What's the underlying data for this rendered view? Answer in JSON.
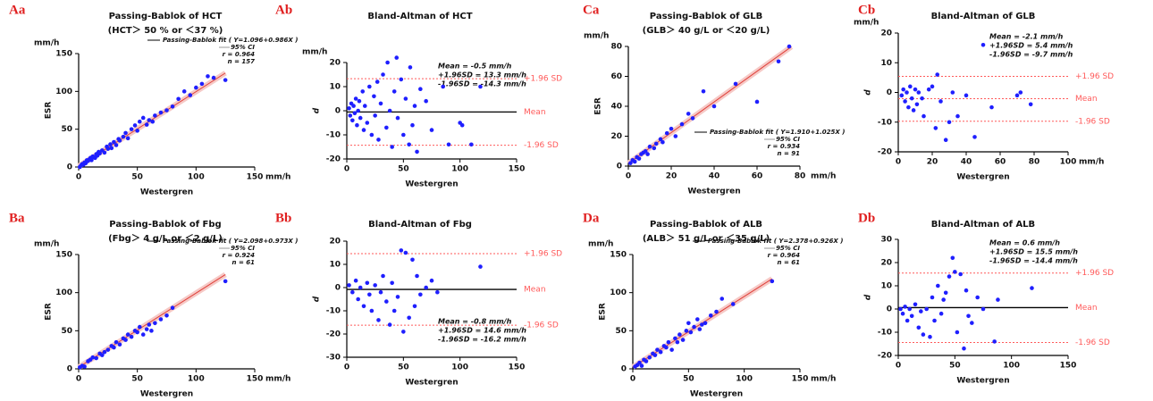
{
  "chart_data": [
    {
      "type": "passing-bablok",
      "panel": "Aa",
      "title": "Passing-Bablok of HCT",
      "subtitle": "(HCT＞ 50 % or ＜37 %)",
      "x_label": "Westergren",
      "y_label": "ESR",
      "x_unit": "mm/h",
      "y_unit": "mm/h",
      "xlim": [
        0,
        150
      ],
      "ylim": [
        0,
        150
      ],
      "xticks": [
        0,
        50,
        100,
        150
      ],
      "yticks": [
        0,
        50,
        100,
        150
      ],
      "legend_position": "upper right",
      "series": [
        {
          "color": "#1f1fff",
          "x": [
            1,
            2,
            3,
            4,
            5,
            6,
            7,
            8,
            9,
            10,
            11,
            12,
            13,
            14,
            15,
            16,
            17,
            18,
            20,
            22,
            24,
            25,
            27,
            28,
            30,
            32,
            34,
            35,
            38,
            40,
            42,
            45,
            48,
            50,
            52,
            55,
            58,
            60,
            63,
            65,
            70,
            75,
            80,
            85,
            90,
            95,
            100,
            105,
            110,
            115,
            125
          ],
          "values": [
            0,
            2,
            4,
            3,
            6,
            5,
            9,
            8,
            10,
            12,
            9,
            14,
            13,
            12,
            17,
            15,
            20,
            18,
            22,
            19,
            27,
            24,
            30,
            25,
            33,
            29,
            37,
            35,
            40,
            45,
            38,
            50,
            55,
            48,
            60,
            65,
            56,
            62,
            60,
            68,
            72,
            75,
            80,
            90,
            100,
            95,
            105,
            110,
            120,
            118,
            115
          ]
        },
        {
          "name": "Passing-Bablok fit ( Y=1.096+0.986X )",
          "color": "#e0403a",
          "x": [
            0,
            125
          ],
          "values": [
            1.1,
            124.3
          ]
        }
      ],
      "ci_label": "95% CI",
      "ci_color": "#f6c9c6",
      "annotations": [
        "r = 0.964",
        "n = 157"
      ]
    },
    {
      "type": "bland-altman",
      "panel": "Ab",
      "title": "Bland-Altman of HCT",
      "x_label": "Westergren",
      "y_label": "d",
      "y_unit": "mm/h",
      "xlim": [
        0,
        150
      ],
      "ylim": [
        -20,
        20
      ],
      "xticks": [
        0,
        50,
        100,
        150
      ],
      "yticks": [
        -20,
        -10,
        0,
        10,
        20
      ],
      "legend_position": "upper right",
      "series": [
        {
          "color": "#1f1fff",
          "x": [
            2,
            3,
            4,
            5,
            6,
            7,
            8,
            9,
            10,
            11,
            12,
            14,
            15,
            16,
            18,
            20,
            22,
            24,
            25,
            27,
            28,
            30,
            32,
            35,
            36,
            38,
            40,
            42,
            44,
            45,
            48,
            50,
            52,
            55,
            56,
            58,
            60,
            62,
            65,
            70,
            75,
            85,
            90,
            100,
            102,
            110,
            118
          ],
          "values": [
            1,
            -2,
            3,
            -4,
            2,
            -1,
            5,
            -6,
            0,
            4,
            -3,
            8,
            -8,
            2,
            -5,
            10,
            -10,
            6,
            -2,
            12,
            -12,
            3,
            15,
            -7,
            20,
            0,
            -15,
            8,
            22,
            -3,
            13,
            -10,
            5,
            -14,
            18,
            -6,
            2,
            -17,
            9,
            4,
            -8,
            10,
            -14,
            -5,
            -6,
            -14,
            10
          ]
        }
      ],
      "reference_lines": [
        {
          "label": "+1.96 SD",
          "value": 13.3,
          "color": "#ff5a5a"
        },
        {
          "label": "Mean",
          "value": -0.5,
          "color": "#000000"
        },
        {
          "label": "-1.96 SD",
          "value": -14.3,
          "color": "#ff5a5a"
        }
      ],
      "annotations": [
        "Mean = -0.5 mm/h",
        "+1.96SD = 13.3 mm/h",
        "-1.96SD = -14.3 mm/h"
      ]
    },
    {
      "type": "passing-bablok",
      "panel": "Ca",
      "title": "Passing-Bablok of GLB",
      "subtitle": "(GLB＞ 40 g/L or ＜20 g/L)",
      "x_label": "Westergren",
      "y_label": "ESR",
      "x_unit": "mm/h",
      "y_unit": "mm/h",
      "xlim": [
        0,
        80
      ],
      "ylim": [
        0,
        80
      ],
      "xticks": [
        0,
        20,
        40,
        60,
        80
      ],
      "yticks": [
        0,
        20,
        40,
        60,
        80
      ],
      "legend_position": "lower right",
      "series": [
        {
          "color": "#1f1fff",
          "x": [
            1,
            2,
            3,
            4,
            5,
            6,
            7,
            8,
            9,
            10,
            12,
            13,
            15,
            16,
            18,
            20,
            22,
            25,
            28,
            30,
            35,
            40,
            50,
            60,
            70,
            75
          ],
          "values": [
            2,
            4,
            3,
            6,
            5,
            8,
            9,
            10,
            8,
            13,
            12,
            15,
            18,
            16,
            22,
            25,
            20,
            28,
            35,
            32,
            50,
            40,
            55,
            43,
            70,
            80
          ]
        },
        {
          "name": "Passing-Bablok fit ( Y=1.910+1.025X )",
          "color": "#e0403a",
          "x": [
            0,
            76
          ],
          "values": [
            1.9,
            79.8
          ]
        }
      ],
      "ci_label": "95% CI",
      "ci_color": "#f6c9c6",
      "annotations": [
        "r = 0.934",
        "n = 91"
      ]
    },
    {
      "type": "bland-altman",
      "panel": "Cb",
      "title": "Bland-Altman of GLB",
      "x_label": "Westergren",
      "y_label": "d",
      "x_unit": "mm/h",
      "y_unit": "mm/h",
      "xlim": [
        0,
        100
      ],
      "ylim": [
        -20,
        20
      ],
      "xticks": [
        0,
        20,
        40,
        60,
        80,
        100
      ],
      "yticks": [
        -20,
        -10,
        0,
        10,
        20
      ],
      "legend_position": "upper right",
      "series": [
        {
          "color": "#1f1fff",
          "x": [
            2,
            3,
            4,
            5,
            6,
            7,
            8,
            9,
            10,
            11,
            12,
            14,
            15,
            18,
            20,
            22,
            23,
            25,
            28,
            30,
            32,
            35,
            40,
            45,
            50,
            55,
            70,
            72,
            78
          ],
          "values": [
            -1,
            1,
            -3,
            0,
            -5,
            2,
            -2,
            -6,
            1,
            -4,
            0,
            -2,
            -8,
            1,
            2,
            -12,
            6,
            -3,
            -16,
            -10,
            0,
            -8,
            -1,
            -15,
            16,
            -5,
            -1,
            0,
            -4
          ]
        }
      ],
      "reference_lines": [
        {
          "label": "+1.96 SD",
          "value": 5.4,
          "color": "#ff5a5a"
        },
        {
          "label": "Mean",
          "value": -2.1,
          "color": "#ff5a5a"
        },
        {
          "label": "-1.96 SD",
          "value": -9.7,
          "color": "#ff5a5a"
        }
      ],
      "annotations": [
        "Mean = -2.1 mm/h",
        "+1.96SD = 5.4 mm/h",
        "-1.96SD = -9.7 mm/h"
      ]
    },
    {
      "type": "passing-bablok",
      "panel": "Ba",
      "title": "Passing-Bablok of Fbg",
      "subtitle": "(Fbg＞ 4 g/L or ＜2 g/L)",
      "x_label": "Westergren",
      "y_label": "ESR",
      "x_unit": "mm/h",
      "y_unit": "mm/h",
      "xlim": [
        0,
        150
      ],
      "ylim": [
        0,
        150
      ],
      "xticks": [
        0,
        50,
        100,
        150
      ],
      "yticks": [
        0,
        50,
        100,
        150
      ],
      "legend_position": "upper right",
      "series": [
        {
          "color": "#1f1fff",
          "x": [
            1,
            3,
            5,
            8,
            10,
            12,
            15,
            18,
            20,
            22,
            25,
            28,
            30,
            32,
            35,
            38,
            40,
            42,
            45,
            48,
            50,
            52,
            55,
            58,
            60,
            62,
            65,
            70,
            75,
            80,
            125
          ],
          "values": [
            2,
            4,
            3,
            10,
            12,
            15,
            14,
            20,
            18,
            22,
            25,
            30,
            28,
            35,
            32,
            40,
            38,
            45,
            42,
            50,
            48,
            55,
            45,
            52,
            58,
            50,
            60,
            65,
            70,
            80,
            115
          ]
        },
        {
          "name": "Passing-Bablok fit ( Y=2.098+0.973X )",
          "color": "#e0403a",
          "x": [
            0,
            125
          ],
          "values": [
            2.1,
            123.7
          ]
        }
      ],
      "ci_label": "95% CI",
      "ci_color": "#f6c9c6",
      "annotations": [
        "r = 0.924",
        "n = 61"
      ]
    },
    {
      "type": "bland-altman",
      "panel": "Bb",
      "title": "Bland-Altman of Fbg",
      "x_label": "Westergren",
      "y_label": "d",
      "xlim": [
        0,
        150
      ],
      "ylim": [
        -30,
        20
      ],
      "xticks": [
        0,
        50,
        100,
        150
      ],
      "yticks": [
        -30,
        -20,
        -10,
        0,
        10,
        20
      ],
      "legend_position": "lower right",
      "series": [
        {
          "color": "#1f1fff",
          "x": [
            2,
            5,
            8,
            10,
            12,
            15,
            18,
            20,
            22,
            25,
            28,
            30,
            32,
            35,
            38,
            40,
            42,
            45,
            48,
            50,
            52,
            55,
            58,
            60,
            62,
            65,
            70,
            75,
            80,
            118
          ],
          "values": [
            1,
            -2,
            3,
            -5,
            0,
            -8,
            2,
            -3,
            -10,
            1,
            -14,
            -2,
            5,
            -6,
            -16,
            2,
            -10,
            -4,
            16,
            -19,
            15,
            -13,
            12,
            -8,
            5,
            -3,
            0,
            3,
            -2,
            9
          ]
        }
      ],
      "reference_lines": [
        {
          "label": "+1.96 SD",
          "value": 14.6,
          "color": "#ff5a5a"
        },
        {
          "label": "Mean",
          "value": -0.8,
          "color": "#000000"
        },
        {
          "label": "-1.96 SD",
          "value": -16.2,
          "color": "#ff5a5a"
        }
      ],
      "annotations": [
        "Mean = -0.8 mm/h",
        "+1.96SD = 14.6 mm/h",
        "-1.96SD = -16.2 mm/h"
      ]
    },
    {
      "type": "passing-bablok",
      "panel": "Da",
      "title": "Passing-Bablok of ALB",
      "subtitle": "(ALB＞ 51 g/L or ＜35 g/L)",
      "x_label": "Westergren",
      "y_label": "ESR",
      "x_unit": "mm/h",
      "y_unit": "mm/h",
      "xlim": [
        0,
        150
      ],
      "ylim": [
        0,
        150
      ],
      "xticks": [
        0,
        50,
        100,
        150
      ],
      "yticks": [
        0,
        50,
        100,
        150
      ],
      "legend_position": "upper right",
      "series": [
        {
          "color": "#1f1fff",
          "x": [
            2,
            4,
            6,
            8,
            10,
            12,
            15,
            18,
            20,
            22,
            25,
            28,
            30,
            32,
            35,
            38,
            40,
            42,
            45,
            48,
            50,
            52,
            55,
            58,
            60,
            62,
            65,
            70,
            75,
            80,
            90,
            125
          ],
          "values": [
            3,
            5,
            8,
            4,
            12,
            10,
            15,
            20,
            18,
            25,
            22,
            30,
            28,
            35,
            25,
            40,
            35,
            45,
            38,
            50,
            60,
            48,
            55,
            65,
            52,
            58,
            60,
            70,
            75,
            92,
            85,
            115
          ]
        },
        {
          "name": "Passing-Bablok fit ( Y=2.378+0.926X )",
          "color": "#e0403a",
          "x": [
            0,
            125
          ],
          "values": [
            2.4,
            118.1
          ]
        }
      ],
      "ci_label": "95% CI",
      "ci_color": "#f6c9c6",
      "annotations": [
        "r = 0.964",
        "n = 61"
      ]
    },
    {
      "type": "bland-altman",
      "panel": "Db",
      "title": "Bland-Altman of ALB",
      "x_label": "Westergren",
      "y_label": "d",
      "xlim": [
        0,
        150
      ],
      "ylim": [
        -20,
        30
      ],
      "xticks": [
        0,
        50,
        100,
        150
      ],
      "yticks": [
        -20,
        -10,
        0,
        10,
        20,
        30
      ],
      "legend_position": "upper right",
      "series": [
        {
          "color": "#1f1fff",
          "x": [
            2,
            4,
            6,
            8,
            10,
            12,
            15,
            18,
            20,
            22,
            25,
            28,
            30,
            32,
            35,
            38,
            40,
            42,
            45,
            48,
            50,
            52,
            55,
            58,
            60,
            62,
            65,
            70,
            75,
            85,
            88,
            118
          ],
          "values": [
            0,
            -2,
            1,
            -5,
            0,
            -3,
            2,
            -8,
            -1,
            -11,
            0,
            -12,
            5,
            -5,
            10,
            -2,
            4,
            7,
            14,
            22,
            16,
            -10,
            15,
            -17,
            8,
            -3,
            -6,
            5,
            0,
            -14,
            4,
            9
          ]
        }
      ],
      "reference_lines": [
        {
          "label": "+1.96 SD",
          "value": 15.5,
          "color": "#ff5a5a"
        },
        {
          "label": "Mean",
          "value": 0.6,
          "color": "#000000"
        },
        {
          "label": "-1.96 SD",
          "value": -14.4,
          "color": "#ff5a5a"
        }
      ],
      "annotations": [
        "Mean = 0.6 mm/h",
        "+1.96SD = 15.5 mm/h",
        "-1.96SD = -14.4 mm/h"
      ]
    }
  ]
}
